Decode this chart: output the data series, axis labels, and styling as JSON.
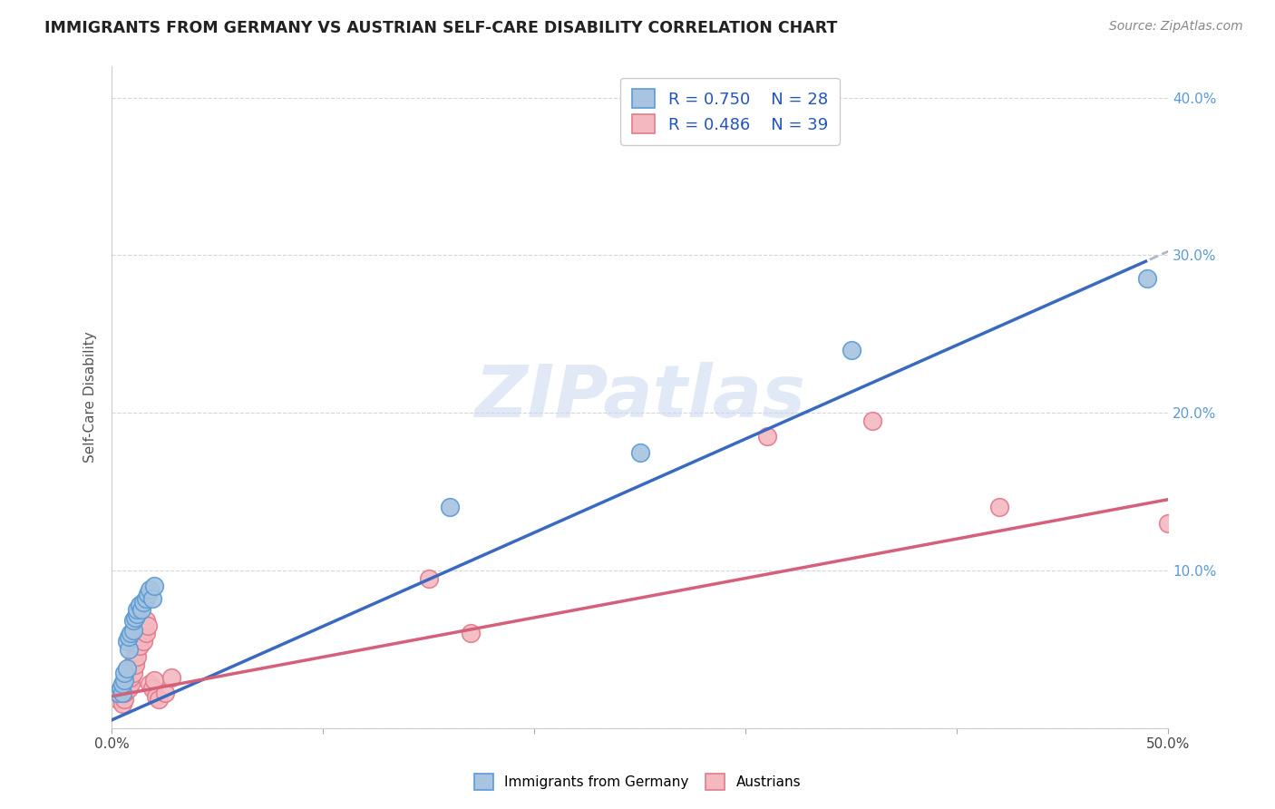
{
  "title": "IMMIGRANTS FROM GERMANY VS AUSTRIAN SELF-CARE DISABILITY CORRELATION CHART",
  "source": "Source: ZipAtlas.com",
  "ylabel": "Self-Care Disability",
  "xlim": [
    0,
    0.5
  ],
  "ylim": [
    0,
    0.42
  ],
  "xticks": [
    0.0,
    0.1,
    0.2,
    0.3,
    0.4,
    0.5
  ],
  "yticks": [
    0.0,
    0.1,
    0.2,
    0.3,
    0.4
  ],
  "xtick_labels": [
    "0.0%",
    "",
    "",
    "",
    "",
    "50.0%"
  ],
  "ytick_labels_left": [
    "",
    "",
    "",
    "",
    ""
  ],
  "ytick_labels_right": [
    "",
    "10.0%",
    "20.0%",
    "30.0%",
    "40.0%"
  ],
  "germany_color": "#a8c4e0",
  "germany_edge_color": "#5b9bd5",
  "austrians_color": "#f4b8c1",
  "austrians_edge_color": "#e07b8a",
  "regression_germany_color": "#3a6abf",
  "regression_austrians_color": "#d4607a",
  "R_germany": 0.75,
  "N_germany": 28,
  "R_austrians": 0.486,
  "N_austrians": 39,
  "legend_label_germany": "Immigrants from Germany",
  "legend_label_austrians": "Austrians",
  "watermark": "ZIPatlas",
  "germany_scatter": [
    [
      0.003,
      0.022
    ],
    [
      0.004,
      0.025
    ],
    [
      0.005,
      0.022
    ],
    [
      0.005,
      0.028
    ],
    [
      0.006,
      0.03
    ],
    [
      0.006,
      0.035
    ],
    [
      0.007,
      0.038
    ],
    [
      0.007,
      0.055
    ],
    [
      0.008,
      0.05
    ],
    [
      0.008,
      0.058
    ],
    [
      0.009,
      0.06
    ],
    [
      0.01,
      0.062
    ],
    [
      0.01,
      0.068
    ],
    [
      0.011,
      0.07
    ],
    [
      0.012,
      0.072
    ],
    [
      0.012,
      0.075
    ],
    [
      0.013,
      0.078
    ],
    [
      0.014,
      0.075
    ],
    [
      0.015,
      0.08
    ],
    [
      0.016,
      0.082
    ],
    [
      0.017,
      0.085
    ],
    [
      0.018,
      0.088
    ],
    [
      0.019,
      0.082
    ],
    [
      0.02,
      0.09
    ],
    [
      0.16,
      0.14
    ],
    [
      0.25,
      0.175
    ],
    [
      0.35,
      0.24
    ],
    [
      0.49,
      0.285
    ]
  ],
  "austrians_scatter": [
    [
      0.003,
      0.018
    ],
    [
      0.004,
      0.02
    ],
    [
      0.005,
      0.015
    ],
    [
      0.005,
      0.022
    ],
    [
      0.006,
      0.018
    ],
    [
      0.006,
      0.022
    ],
    [
      0.007,
      0.025
    ],
    [
      0.007,
      0.028
    ],
    [
      0.008,
      0.03
    ],
    [
      0.008,
      0.025
    ],
    [
      0.009,
      0.028
    ],
    [
      0.009,
      0.032
    ],
    [
      0.01,
      0.035
    ],
    [
      0.01,
      0.042
    ],
    [
      0.011,
      0.04
    ],
    [
      0.011,
      0.048
    ],
    [
      0.012,
      0.045
    ],
    [
      0.012,
      0.055
    ],
    [
      0.013,
      0.052
    ],
    [
      0.013,
      0.06
    ],
    [
      0.014,
      0.058
    ],
    [
      0.015,
      0.055
    ],
    [
      0.015,
      0.062
    ],
    [
      0.016,
      0.06
    ],
    [
      0.016,
      0.068
    ],
    [
      0.017,
      0.065
    ],
    [
      0.018,
      0.028
    ],
    [
      0.019,
      0.025
    ],
    [
      0.02,
      0.03
    ],
    [
      0.021,
      0.02
    ],
    [
      0.022,
      0.018
    ],
    [
      0.025,
      0.022
    ],
    [
      0.028,
      0.032
    ],
    [
      0.15,
      0.095
    ],
    [
      0.17,
      0.06
    ],
    [
      0.31,
      0.185
    ],
    [
      0.36,
      0.195
    ],
    [
      0.42,
      0.14
    ],
    [
      0.5,
      0.13
    ]
  ]
}
